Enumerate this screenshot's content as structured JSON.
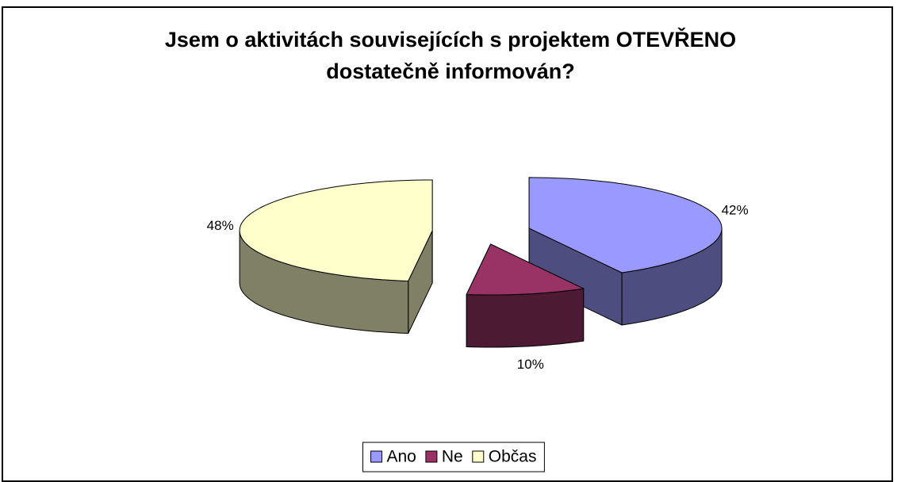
{
  "chart_data": {
    "type": "pie3d",
    "title": "Jsem o aktivitách souvisejících s projektem OTEVŘENO dostatečně informován?",
    "categories": [
      "Ano",
      "Ne",
      "Občas"
    ],
    "values": [
      42,
      10,
      48
    ],
    "value_labels": [
      "42%",
      "10%",
      "48%"
    ],
    "colors": [
      "#9999ff",
      "#993366",
      "#ffffcc"
    ],
    "legend": "bottom"
  }
}
